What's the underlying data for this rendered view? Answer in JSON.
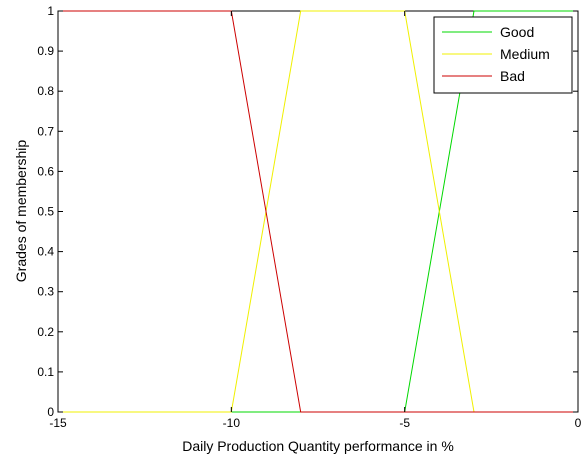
{
  "chart_data": {
    "type": "line",
    "title": "",
    "xlabel": "Daily Production Quantity performance in %",
    "ylabel": "Grades of membership",
    "xlim": [
      -15,
      0
    ],
    "ylim": [
      0,
      1
    ],
    "x_ticks": [
      -15,
      -10,
      -5,
      0
    ],
    "x_tick_labels": [
      "-15",
      "-10",
      "-5",
      "0"
    ],
    "y_ticks": [
      0,
      0.1,
      0.2,
      0.3,
      0.4,
      0.5,
      0.6,
      0.7,
      0.8,
      0.9,
      1
    ],
    "y_tick_labels": [
      "0",
      "0.1",
      "0.2",
      "0.3",
      "0.4",
      "0.5",
      "0.6",
      "0.7",
      "0.8",
      "0.9",
      "1"
    ],
    "grid": false,
    "legend_position": "top-right",
    "series": [
      {
        "name": "Good",
        "color": "#00d800",
        "x": [
          -15,
          -5,
          -3,
          0
        ],
        "y": [
          0,
          0,
          1,
          1
        ]
      },
      {
        "name": "Medium",
        "color": "#f0f000",
        "x": [
          -15,
          -10,
          -8,
          -5,
          -3,
          0
        ],
        "y": [
          0,
          0,
          1,
          1,
          0,
          0
        ]
      },
      {
        "name": "Bad",
        "color": "#cc0000",
        "x": [
          -15,
          -10,
          -8,
          0
        ],
        "y": [
          1,
          1,
          0,
          0
        ]
      }
    ]
  }
}
